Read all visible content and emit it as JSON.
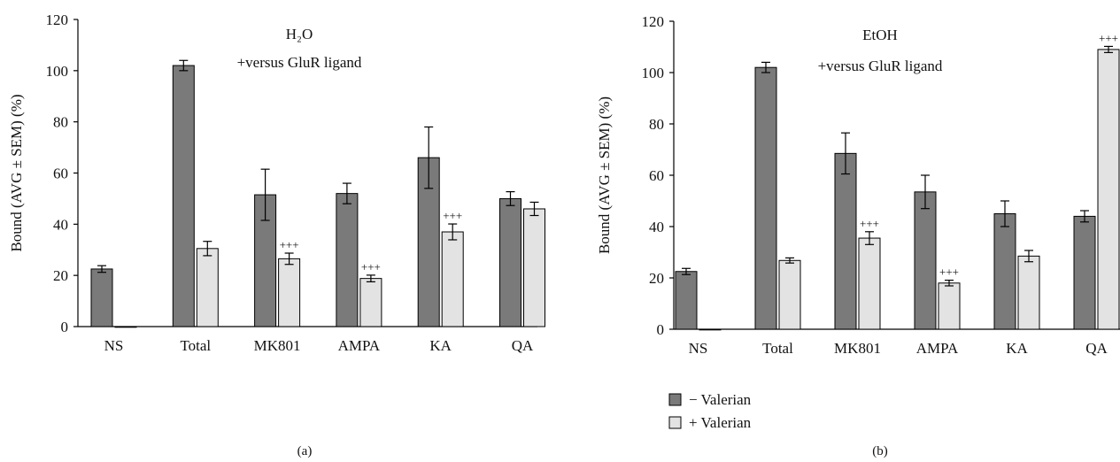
{
  "chart_data": [
    {
      "type": "bar",
      "panel_label": "(a)",
      "annotation_line1": "H₂O",
      "annotation_line2": "+versus GluR ligand",
      "ylabel": "Bound (AVG ± SEM) (%)",
      "ylim": [
        0,
        120
      ],
      "yticks": [
        0,
        20,
        40,
        60,
        80,
        100,
        120
      ],
      "categories": [
        "NS",
        "Total",
        "MK801",
        "AMPA",
        "KA",
        "QA"
      ],
      "series": [
        {
          "name": "− Valerian",
          "color": "#7a7a7a",
          "values": [
            22.5,
            102,
            51.5,
            52,
            66,
            50
          ],
          "errors": [
            1.3,
            2,
            10,
            4,
            12,
            2.7
          ]
        },
        {
          "name": "+ Valerian",
          "color": "#e3e3e3",
          "values": [
            0,
            30.5,
            26.5,
            18.8,
            37,
            46
          ],
          "errors": [
            0,
            2.8,
            2.2,
            1.3,
            3.1,
            2.6
          ]
        }
      ],
      "significance": [
        "",
        "",
        "+++",
        "+++",
        "+++",
        ""
      ],
      "grid": false
    },
    {
      "type": "bar",
      "panel_label": "(b)",
      "annotation_line1": "EtOH",
      "annotation_line2": "+versus GluR ligand",
      "ylabel": "Bound (AVG ± SEM) (%)",
      "ylim": [
        0,
        120
      ],
      "yticks": [
        0,
        20,
        40,
        60,
        80,
        100,
        120
      ],
      "categories": [
        "NS",
        "Total",
        "MK801",
        "AMPA",
        "KA",
        "QA"
      ],
      "series": [
        {
          "name": "− Valerian",
          "color": "#7a7a7a",
          "values": [
            22.5,
            102,
            68.5,
            53.5,
            45,
            44
          ],
          "errors": [
            1.2,
            2,
            8,
            6.5,
            5,
            2.2
          ]
        },
        {
          "name": "+ Valerian",
          "color": "#e3e3e3",
          "values": [
            0,
            26.8,
            35.5,
            18,
            28.5,
            109
          ],
          "errors": [
            0,
            1,
            2.5,
            1.1,
            2.2,
            1.2
          ]
        }
      ],
      "significance": [
        "",
        "",
        "+++",
        "+++",
        "",
        "+++"
      ],
      "grid": false
    }
  ],
  "legend": {
    "items": [
      {
        "label": "− Valerian",
        "color": "#7a7a7a"
      },
      {
        "label": "+ Valerian",
        "color": "#e3e3e3"
      }
    ]
  }
}
